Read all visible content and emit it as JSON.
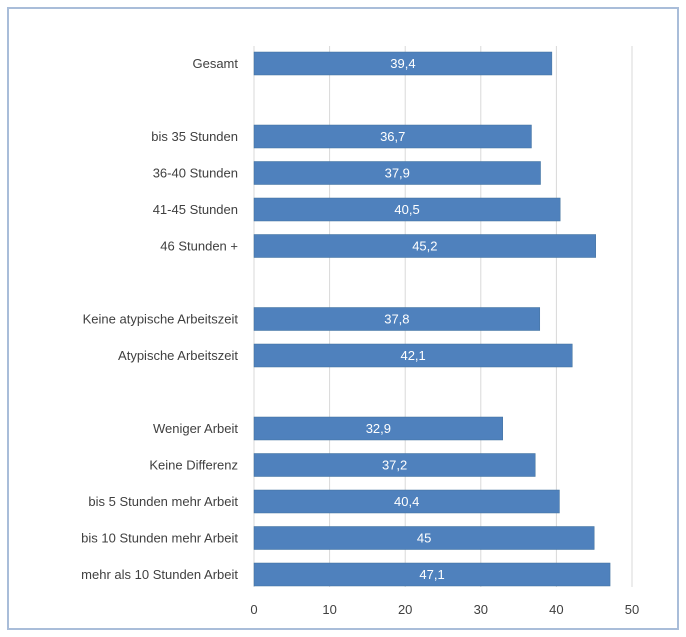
{
  "chart_data": {
    "type": "bar",
    "orientation": "horizontal",
    "categories": [
      "Gesamt",
      "",
      "bis 35 Stunden",
      "36-40 Stunden",
      "41-45 Stunden",
      "46 Stunden +",
      "",
      "Keine atypische Arbeitszeit",
      "Atypische Arbeitszeit",
      "",
      "Weniger Arbeit",
      "Keine Differenz",
      "bis 5 Stunden mehr Arbeit",
      "bis 10 Stunden mehr Arbeit",
      "mehr als 10 Stunden Arbeit"
    ],
    "values": [
      39.4,
      null,
      36.7,
      37.9,
      40.5,
      45.2,
      null,
      37.8,
      42.1,
      null,
      32.9,
      37.2,
      40.4,
      45,
      47.1
    ],
    "value_labels": [
      "39,4",
      "",
      "36,7",
      "37,9",
      "40,5",
      "45,2",
      "",
      "37,8",
      "42,1",
      "",
      "32,9",
      "37,2",
      "40,4",
      "45",
      "47,1"
    ],
    "xlim": [
      0,
      50
    ],
    "xticks": [
      0,
      10,
      20,
      30,
      40,
      50
    ],
    "xtick_labels": [
      "0",
      "10",
      "20",
      "30",
      "40",
      "50"
    ],
    "title": "",
    "xlabel": "",
    "ylabel": "",
    "grid": "vertical",
    "legend": "none",
    "colors": {
      "bar": "#4f81bd",
      "bar_stroke": "#41719c",
      "grid": "#d9d9d9",
      "border": "#a9bdd9"
    }
  }
}
